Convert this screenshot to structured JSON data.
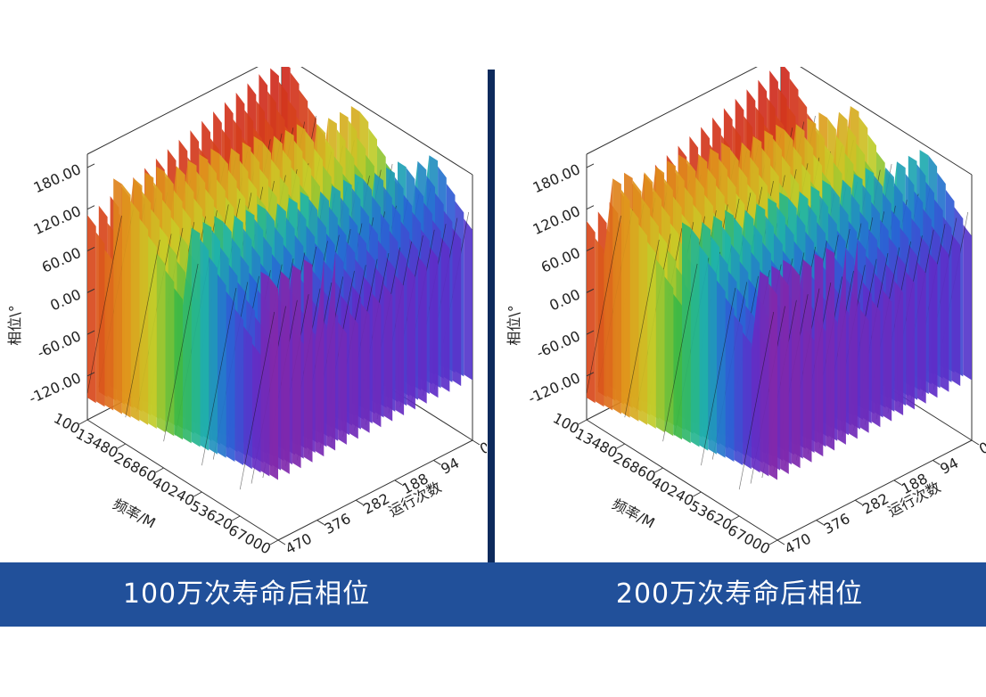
{
  "chart_data": [
    {
      "type": "surface3d",
      "caption": "100万次寿命后相位",
      "zlabel": "相位\\°",
      "xlabel": "频率/M",
      "ylabel": "运行次数",
      "z_ticks": [
        "180.00",
        "120.00",
        "60.00",
        "0.00",
        "-60.00",
        "-120.00"
      ],
      "freq_ticks": [
        "100",
        "13480",
        "26860",
        "40240",
        "53620",
        "67000"
      ],
      "run_ticks": [
        "0",
        "94",
        "188",
        "282",
        "376",
        "470"
      ],
      "zlim": [
        -180,
        180
      ],
      "freq_range": [
        100,
        67000
      ],
      "run_range": [
        0,
        470
      ]
    },
    {
      "type": "surface3d",
      "caption": "200万次寿命后相位",
      "zlabel": "相位\\°",
      "xlabel": "频率/M",
      "ylabel": "运行次数",
      "z_ticks": [
        "180.00",
        "120.00",
        "60.00",
        "0.00",
        "-60.00",
        "-120.00"
      ],
      "freq_ticks": [
        "100",
        "13480",
        "26860",
        "40240",
        "53620",
        "67000"
      ],
      "run_ticks": [
        "0",
        "94",
        "188",
        "282",
        "376",
        "470"
      ],
      "zlim": [
        -180,
        180
      ],
      "freq_range": [
        100,
        67000
      ],
      "run_range": [
        0,
        470
      ]
    }
  ],
  "colors": {
    "divider": "#0d2a5c",
    "caption_bar": "#21509a",
    "caption_text": "#ffffff"
  }
}
